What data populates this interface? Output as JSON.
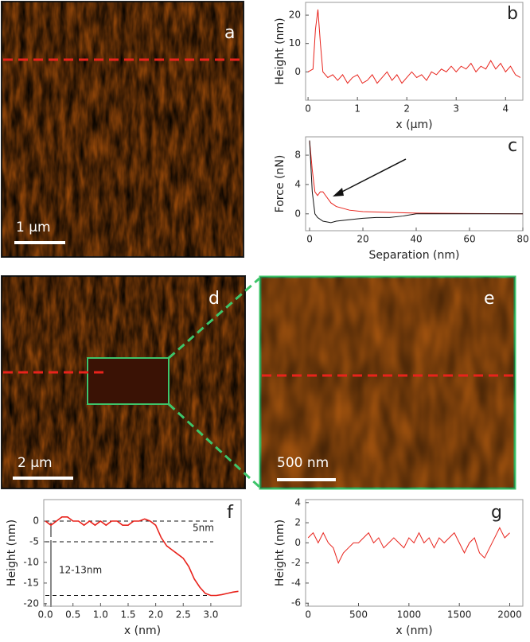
{
  "images": [
    {
      "label": "a",
      "scale_bar": "1 µm"
    },
    {
      "label": "d",
      "scale_bar": "2 µm"
    },
    {
      "label": "e",
      "scale_bar": "500 nm"
    }
  ],
  "chart_data": [
    {
      "type": "line",
      "label": "b",
      "x_label": "x (µm)",
      "y_label": "Height (nm)",
      "x": [
        0,
        0.1,
        0.15,
        0.2,
        0.25,
        0.3,
        0.4,
        0.5,
        0.6,
        0.7,
        0.8,
        0.9,
        1.0,
        1.1,
        1.2,
        1.3,
        1.4,
        1.5,
        1.6,
        1.7,
        1.8,
        1.9,
        2.0,
        2.1,
        2.2,
        2.3,
        2.4,
        2.5,
        2.6,
        2.7,
        2.8,
        2.9,
        3.0,
        3.1,
        3.2,
        3.3,
        3.4,
        3.5,
        3.6,
        3.7,
        3.8,
        3.9,
        4.0,
        4.1,
        4.2,
        4.3
      ],
      "series": [
        {
          "color": "#e8231c",
          "values": [
            0,
            1,
            15,
            22,
            10,
            0,
            -2,
            -1,
            -3,
            -1,
            -4,
            -2,
            -1,
            -4,
            -3,
            -1,
            -4,
            -2,
            0,
            -3,
            -1,
            -4,
            -2,
            0,
            -2,
            -1,
            -3,
            0,
            -1,
            1,
            0,
            2,
            0,
            2,
            1,
            3,
            0,
            2,
            1,
            4,
            1,
            3,
            0,
            2,
            -1,
            -2
          ]
        }
      ],
      "xlim": [
        -0.05,
        4.35
      ],
      "xticks": [
        0,
        1,
        2,
        3,
        4
      ],
      "ylim": [
        -10,
        24.5
      ],
      "yticks": [
        0,
        10,
        20
      ]
    },
    {
      "type": "line",
      "label": "c",
      "x_label": "Separation (nm)",
      "y_label": "Force (nN)",
      "series": [
        {
          "color": "#e8231c",
          "x": [
            0,
            1,
            2,
            3,
            4,
            5,
            6,
            8,
            10,
            15,
            20,
            30,
            40,
            60,
            80
          ],
          "values": [
            10,
            6,
            3,
            2.5,
            3,
            3,
            2.5,
            1.5,
            1,
            0.5,
            0.3,
            0.2,
            0.1,
            0.05,
            0
          ]
        },
        {
          "color": "#111111",
          "x": [
            0,
            1,
            2,
            3,
            5,
            8,
            10,
            15,
            20,
            25,
            30,
            35,
            40,
            60,
            80
          ],
          "values": [
            10,
            3,
            0,
            -0.5,
            -1,
            -1.2,
            -1,
            -0.8,
            -0.6,
            -0.5,
            -0.5,
            -0.3,
            0,
            0,
            0
          ]
        }
      ],
      "xlim": [
        -1.5,
        80
      ],
      "xticks": [
        0,
        20,
        40,
        60,
        80
      ],
      "ylim": [
        -2.3,
        10.5
      ],
      "yticks": [
        0,
        4,
        8
      ]
    },
    {
      "type": "line",
      "label": "f",
      "x_label": "x (nm)",
      "y_label": "Height (nm)",
      "x": [
        0,
        0.1,
        0.2,
        0.3,
        0.4,
        0.5,
        0.6,
        0.7,
        0.8,
        0.9,
        1.0,
        1.1,
        1.2,
        1.3,
        1.4,
        1.5,
        1.6,
        1.7,
        1.8,
        1.9,
        2.0,
        2.1,
        2.2,
        2.3,
        2.4,
        2.5,
        2.6,
        2.7,
        2.8,
        2.9,
        3.0,
        3.1,
        3.2,
        3.3,
        3.4,
        3.5
      ],
      "series": [
        {
          "color": "#e8231c",
          "values": [
            0,
            -1,
            0,
            1,
            1,
            0,
            0,
            -1,
            0,
            -1,
            0,
            -1,
            0,
            0,
            -1,
            -1,
            0,
            0,
            0.5,
            0,
            -1,
            -4,
            -6,
            -7,
            -8,
            -9,
            -11,
            -14,
            -16,
            -17.5,
            -18,
            -18,
            -17.8,
            -17.5,
            -17.2,
            -17
          ]
        }
      ],
      "xlim": [
        -0.03,
        3.55
      ],
      "xticks": [
        {
          "value": 0,
          "label": "0.0"
        },
        {
          "value": 0.5,
          "label": "0.5"
        },
        {
          "value": 1,
          "label": "1.0"
        },
        {
          "value": 1.5,
          "label": "1.5"
        },
        {
          "value": 2,
          "label": "2.0"
        },
        {
          "value": 2.5,
          "label": "2.5"
        },
        {
          "value": 3,
          "label": "3.0"
        }
      ],
      "ylim": [
        -20.6,
        5.2
      ],
      "yticks": [
        0,
        -5,
        -10,
        -15,
        -20
      ],
      "reference_lines": [
        0,
        -5,
        -18
      ],
      "annotations": [
        "5nm",
        "12-13nm"
      ]
    },
    {
      "type": "line",
      "label": "g",
      "x_label": "x (nm)",
      "y_label": "Height (nm)",
      "x": [
        0,
        50,
        100,
        150,
        200,
        250,
        300,
        350,
        400,
        450,
        500,
        550,
        600,
        650,
        700,
        750,
        800,
        850,
        900,
        950,
        1000,
        1050,
        1100,
        1150,
        1200,
        1250,
        1300,
        1350,
        1400,
        1450,
        1500,
        1550,
        1600,
        1650,
        1700,
        1750,
        1800,
        1850,
        1900,
        1950,
        2000
      ],
      "series": [
        {
          "color": "#e8231c",
          "values": [
            0.5,
            1,
            0,
            1,
            0,
            -0.5,
            -2,
            -1,
            -0.5,
            0,
            0,
            0.5,
            1,
            0,
            0.5,
            -0.5,
            0,
            0.5,
            0,
            -0.5,
            0.5,
            0,
            1,
            0,
            0.5,
            -0.5,
            0.5,
            0,
            0.5,
            1,
            0,
            -1,
            0,
            0.5,
            -1,
            -1.5,
            -0.5,
            0.5,
            1.5,
            0.5,
            1
          ]
        }
      ],
      "xlim": [
        -25,
        2130
      ],
      "xticks": [
        0,
        500,
        1000,
        1500,
        2000
      ],
      "ylim": [
        -6.3,
        4.3
      ],
      "yticks": [
        -6,
        -4,
        -2,
        0,
        2,
        4
      ]
    }
  ]
}
